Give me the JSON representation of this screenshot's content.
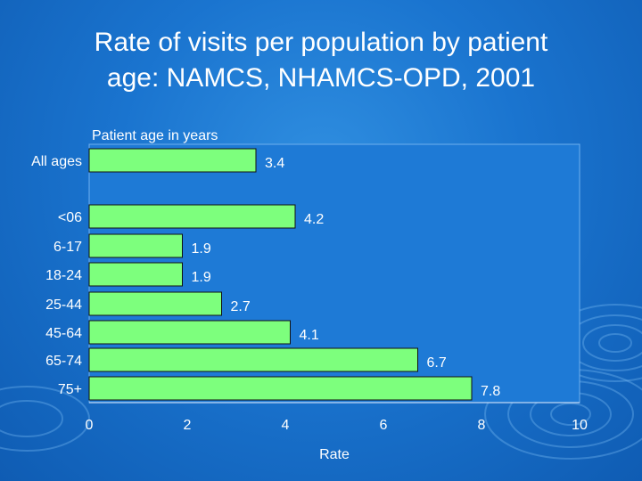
{
  "slide": {
    "title_line1": "Rate of visits per population by patient",
    "title_line2": "age: NAMCS, NHAMCS-OPD, 2001"
  },
  "chart_data": {
    "type": "bar",
    "orientation": "horizontal",
    "title": "Rate of visits per population by patient age: NAMCS, NHAMCS-OPD, 2001",
    "ylabel": "Patient age in years",
    "xlabel": "Rate",
    "categories": [
      "All ages",
      "<06",
      "6-17",
      "18-24",
      "25-44",
      "45-64",
      "65-74",
      "75+"
    ],
    "values": [
      3.4,
      4.2,
      1.9,
      1.9,
      2.7,
      4.1,
      6.7,
      7.8
    ],
    "data_labels": [
      "3.4",
      "4.2",
      "1.9",
      "1.9",
      "2.7",
      "4.1",
      "6.7",
      "7.8"
    ],
    "xlim": [
      0,
      10
    ],
    "xticks": [
      0,
      2,
      4,
      6,
      8,
      10
    ],
    "grid": false,
    "colors": {
      "bar": "#7dff7d",
      "text": "#ffffff",
      "background": "#1a74cf"
    }
  }
}
